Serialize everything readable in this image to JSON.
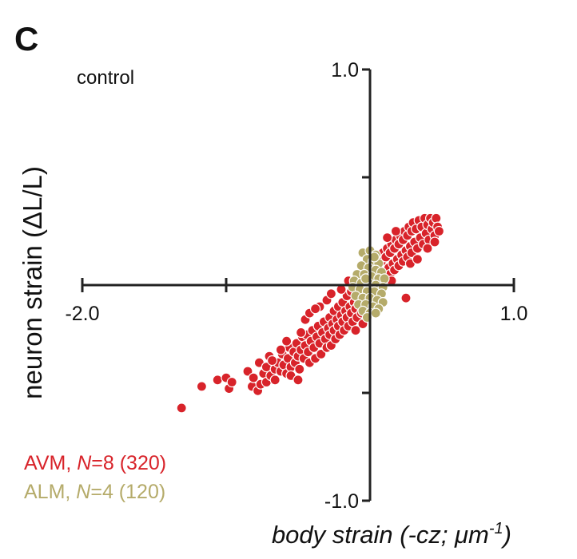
{
  "panel_label": "C",
  "condition_label": "control",
  "legend": {
    "avm": {
      "prefix": "AVM, ",
      "n_italic": "N",
      "rest": "=8 (320)"
    },
    "alm": {
      "prefix": "ALM, ",
      "n_italic": "N",
      "rest": "=4 (120)"
    }
  },
  "colors": {
    "avm": "#d8232a",
    "alm": "#b5ab6a",
    "axis": "#222222",
    "text": "#111111"
  },
  "chart_data": {
    "type": "scatter",
    "title": "",
    "subtitle": "control",
    "xlabel": "body strain (-cz; μm-1)",
    "xlabel_parts": {
      "main": "body strain (-cz; μm",
      "sup": "-1",
      "close": ")"
    },
    "ylabel": "neuron strain (ΔL/L)",
    "xlim": [
      -2.0,
      1.0
    ],
    "ylim": [
      -1.0,
      1.0
    ],
    "x_ticks": [
      -2.0,
      -1.0,
      0.0,
      1.0
    ],
    "y_ticks": [
      -1.0,
      -0.5,
      0.0,
      0.5,
      1.0
    ],
    "x_tick_labels": [
      {
        "value": -2.0,
        "text": "-2.0"
      },
      {
        "value": 1.0,
        "text": "1.0"
      }
    ],
    "y_tick_labels": [
      {
        "value": 1.0,
        "text": "1.0"
      },
      {
        "value": -1.0,
        "text": "-1.0"
      }
    ],
    "grid": false,
    "legend_position": "bottom-left",
    "series": [
      {
        "name": "AVM",
        "n_animals": 8,
        "n_points": 320,
        "color": "#d8232a",
        "points": [
          [
            -1.31,
            -0.57
          ],
          [
            -1.17,
            -0.47
          ],
          [
            -1.06,
            -0.44
          ],
          [
            -1.0,
            -0.43
          ],
          [
            -0.98,
            -0.48
          ],
          [
            -0.96,
            -0.45
          ],
          [
            -0.85,
            -0.4
          ],
          [
            -0.82,
            -0.47
          ],
          [
            -0.81,
            -0.43
          ],
          [
            -0.78,
            -0.49
          ],
          [
            -0.77,
            -0.36
          ],
          [
            -0.76,
            -0.46
          ],
          [
            -0.74,
            -0.41
          ],
          [
            -0.72,
            -0.38
          ],
          [
            -0.72,
            -0.45
          ],
          [
            -0.7,
            -0.33
          ],
          [
            -0.69,
            -0.42
          ],
          [
            -0.66,
            -0.39
          ],
          [
            -0.66,
            -0.44
          ],
          [
            -0.64,
            -0.36
          ],
          [
            -0.62,
            -0.4
          ],
          [
            -0.61,
            -0.32
          ],
          [
            -0.6,
            -0.37
          ],
          [
            -0.58,
            -0.41
          ],
          [
            -0.57,
            -0.34
          ],
          [
            -0.56,
            -0.29
          ],
          [
            -0.55,
            -0.38
          ],
          [
            -0.53,
            -0.31
          ],
          [
            -0.52,
            -0.36
          ],
          [
            -0.51,
            -0.27
          ],
          [
            -0.5,
            -0.33
          ],
          [
            -0.49,
            -0.39
          ],
          [
            -0.48,
            -0.3
          ],
          [
            -0.47,
            -0.24
          ],
          [
            -0.46,
            -0.34
          ],
          [
            -0.45,
            -0.28
          ],
          [
            -0.44,
            -0.23
          ],
          [
            -0.43,
            -0.31
          ],
          [
            -0.42,
            -0.36
          ],
          [
            -0.41,
            -0.26
          ],
          [
            -0.4,
            -0.21
          ],
          [
            -0.39,
            -0.29
          ],
          [
            -0.38,
            -0.34
          ],
          [
            -0.37,
            -0.24
          ],
          [
            -0.36,
            -0.19
          ],
          [
            -0.35,
            -0.27
          ],
          [
            -0.34,
            -0.32
          ],
          [
            -0.33,
            -0.22
          ],
          [
            -0.32,
            -0.17
          ],
          [
            -0.31,
            -0.25
          ],
          [
            -0.3,
            -0.29
          ],
          [
            -0.29,
            -0.2
          ],
          [
            -0.28,
            -0.15
          ],
          [
            -0.28,
            -0.23
          ],
          [
            -0.27,
            -0.28
          ],
          [
            -0.26,
            -0.18
          ],
          [
            -0.25,
            -0.12
          ],
          [
            -0.25,
            -0.21
          ],
          [
            -0.24,
            -0.25
          ],
          [
            -0.23,
            -0.16
          ],
          [
            -0.22,
            -0.1
          ],
          [
            -0.22,
            -0.19
          ],
          [
            -0.21,
            -0.23
          ],
          [
            -0.2,
            -0.14
          ],
          [
            -0.19,
            -0.08
          ],
          [
            -0.19,
            -0.17
          ],
          [
            -0.18,
            -0.21
          ],
          [
            -0.17,
            -0.12
          ],
          [
            -0.16,
            -0.05
          ],
          [
            -0.16,
            -0.15
          ],
          [
            -0.15,
            -0.19
          ],
          [
            -0.14,
            -0.1
          ],
          [
            -0.13,
            -0.03
          ],
          [
            -0.13,
            -0.13
          ],
          [
            -0.12,
            -0.17
          ],
          [
            -0.11,
            -0.08
          ],
          [
            -0.1,
            -0.01
          ],
          [
            -0.1,
            -0.11
          ],
          [
            -0.09,
            -0.15
          ],
          [
            -0.08,
            -0.06
          ],
          [
            -0.07,
            0.01
          ],
          [
            -0.07,
            -0.09
          ],
          [
            -0.06,
            -0.13
          ],
          [
            -0.05,
            -0.04
          ],
          [
            -0.04,
            0.03
          ],
          [
            -0.04,
            -0.07
          ],
          [
            -0.03,
            -0.11
          ],
          [
            -0.02,
            -0.02
          ],
          [
            -0.01,
            0.05
          ],
          [
            -0.01,
            -0.05
          ],
          [
            0.0,
            0.08
          ],
          [
            0.0,
            -0.09
          ],
          [
            0.01,
            0.0
          ],
          [
            0.02,
            0.07
          ],
          [
            0.02,
            -0.03
          ],
          [
            0.03,
            0.1
          ],
          [
            0.04,
            0.02
          ],
          [
            0.05,
            0.09
          ],
          [
            0.05,
            -0.01
          ],
          [
            0.06,
            0.13
          ],
          [
            0.07,
            0.04
          ],
          [
            0.08,
            0.11
          ],
          [
            0.08,
            0.01
          ],
          [
            0.09,
            0.15
          ],
          [
            0.1,
            0.06
          ],
          [
            0.11,
            0.13
          ],
          [
            0.11,
            0.03
          ],
          [
            0.12,
            0.17
          ],
          [
            0.13,
            0.08
          ],
          [
            0.14,
            0.15
          ],
          [
            0.14,
            0.05
          ],
          [
            0.15,
            0.19
          ],
          [
            0.16,
            0.1
          ],
          [
            0.17,
            0.17
          ],
          [
            0.17,
            0.07
          ],
          [
            0.18,
            0.21
          ],
          [
            0.19,
            0.12
          ],
          [
            0.2,
            0.19
          ],
          [
            0.2,
            0.09
          ],
          [
            0.21,
            0.23
          ],
          [
            0.22,
            0.14
          ],
          [
            0.23,
            0.21
          ],
          [
            0.23,
            0.11
          ],
          [
            0.24,
            0.25
          ],
          [
            0.25,
            0.16
          ],
          [
            0.26,
            0.23
          ],
          [
            0.26,
            0.13
          ],
          [
            0.27,
            0.27
          ],
          [
            0.28,
            0.18
          ],
          [
            0.29,
            0.25
          ],
          [
            0.29,
            0.15
          ],
          [
            0.3,
            0.29
          ],
          [
            0.31,
            0.2
          ],
          [
            0.32,
            0.26
          ],
          [
            0.33,
            0.17
          ],
          [
            0.34,
            0.3
          ],
          [
            0.35,
            0.22
          ],
          [
            0.36,
            0.27
          ],
          [
            0.37,
            0.19
          ],
          [
            0.38,
            0.31
          ],
          [
            0.39,
            0.24
          ],
          [
            0.4,
            0.28
          ],
          [
            0.41,
            0.21
          ],
          [
            0.42,
            0.31
          ],
          [
            0.43,
            0.26
          ],
          [
            0.44,
            0.29
          ],
          [
            0.45,
            0.23
          ],
          [
            0.46,
            0.31
          ],
          [
            0.47,
            0.27
          ],
          [
            0.48,
            0.25
          ],
          [
            -0.48,
            -0.22
          ],
          [
            -0.45,
            -0.16
          ],
          [
            -0.42,
            -0.13
          ],
          [
            -0.35,
            -0.1
          ],
          [
            -0.3,
            -0.07
          ],
          [
            -0.38,
            -0.11
          ],
          [
            -0.27,
            -0.04
          ],
          [
            -0.2,
            -0.02
          ],
          [
            -0.15,
            0.02
          ],
          [
            0.25,
            -0.06
          ],
          [
            -0.58,
            -0.26
          ],
          [
            -0.62,
            -0.3
          ],
          [
            -0.68,
            -0.35
          ],
          [
            -0.55,
            -0.42
          ],
          [
            -0.5,
            -0.44
          ],
          [
            -0.1,
            -0.21
          ],
          [
            -0.05,
            -0.18
          ],
          [
            0.05,
            -0.06
          ],
          [
            0.15,
            0.02
          ],
          [
            0.28,
            0.1
          ],
          [
            0.33,
            0.12
          ],
          [
            0.4,
            0.17
          ],
          [
            0.45,
            0.2
          ],
          [
            0.18,
            0.25
          ],
          [
            0.12,
            0.22
          ]
        ]
      },
      {
        "name": "ALM",
        "n_animals": 4,
        "n_points": 120,
        "color": "#b5ab6a",
        "points": [
          [
            -0.05,
            0.15
          ],
          [
            0.0,
            0.16
          ],
          [
            0.04,
            0.14
          ],
          [
            -0.02,
            0.12
          ],
          [
            0.02,
            0.11
          ],
          [
            0.06,
            0.1
          ],
          [
            -0.06,
            0.09
          ],
          [
            -0.01,
            0.08
          ],
          [
            0.04,
            0.07
          ],
          [
            0.08,
            0.06
          ],
          [
            -0.09,
            0.05
          ],
          [
            -0.04,
            0.05
          ],
          [
            0.01,
            0.04
          ],
          [
            0.06,
            0.03
          ],
          [
            0.1,
            0.03
          ],
          [
            -0.11,
            0.02
          ],
          [
            -0.06,
            0.01
          ],
          [
            -0.01,
            0.01
          ],
          [
            0.04,
            0.0
          ],
          [
            0.09,
            -0.01
          ],
          [
            -0.12,
            -0.01
          ],
          [
            -0.07,
            -0.02
          ],
          [
            -0.02,
            -0.03
          ],
          [
            0.03,
            -0.03
          ],
          [
            0.08,
            -0.04
          ],
          [
            -0.1,
            -0.05
          ],
          [
            -0.05,
            -0.06
          ],
          [
            0.0,
            -0.06
          ],
          [
            0.05,
            -0.07
          ],
          [
            0.09,
            -0.08
          ],
          [
            -0.08,
            -0.09
          ],
          [
            -0.03,
            -0.09
          ],
          [
            0.02,
            -0.1
          ],
          [
            0.06,
            -0.11
          ],
          [
            -0.05,
            -0.12
          ],
          [
            0.0,
            -0.13
          ],
          [
            0.04,
            -0.13
          ],
          [
            -0.02,
            -0.15
          ],
          [
            0.03,
            0.13
          ],
          [
            -0.03,
            0.03
          ]
        ]
      }
    ]
  }
}
